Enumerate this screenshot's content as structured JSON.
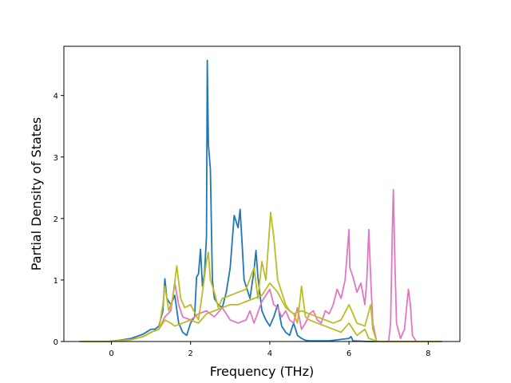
{
  "chart_data": {
    "type": "line",
    "title": "",
    "xlabel": "Frequency (THz)",
    "ylabel": "Partial Density of States",
    "xlim": [
      -1.2,
      8.8
    ],
    "ylim": [
      0,
      4.8
    ],
    "xticks": [
      0,
      2,
      4,
      6,
      8
    ],
    "yticks": [
      0,
      1,
      2,
      3,
      4
    ],
    "legend": "none",
    "grid": false,
    "series": [
      {
        "color": "#1f77b4",
        "x": [
          -0.8,
          -0.1,
          0.2,
          0.5,
          0.8,
          1.0,
          1.1,
          1.2,
          1.3,
          1.35,
          1.4,
          1.5,
          1.6,
          1.7,
          1.8,
          1.9,
          2.0,
          2.1,
          2.15,
          2.2,
          2.25,
          2.3,
          2.35,
          2.4,
          2.42,
          2.45,
          2.5,
          2.55,
          2.6,
          2.7,
          2.8,
          2.9,
          3.0,
          3.1,
          3.2,
          3.25,
          3.3,
          3.35,
          3.4,
          3.5,
          3.6,
          3.65,
          3.7,
          3.8,
          3.9,
          4.0,
          4.1,
          4.2,
          4.3,
          4.4,
          4.5,
          4.6,
          4.7,
          4.8,
          4.9,
          5.0,
          5.5,
          6.0,
          6.05,
          6.1,
          6.5,
          7.0,
          7.5,
          8.0,
          8.35
        ],
        "y": [
          0,
          0,
          0.02,
          0.05,
          0.12,
          0.2,
          0.2,
          0.25,
          0.5,
          1.02,
          0.7,
          0.6,
          0.75,
          0.3,
          0.15,
          0.1,
          0.3,
          0.4,
          1.05,
          1.1,
          1.5,
          0.9,
          1.1,
          1.7,
          4.57,
          3.2,
          2.8,
          1.0,
          0.7,
          0.6,
          0.55,
          0.8,
          1.2,
          2.05,
          1.85,
          2.15,
          1.6,
          1.0,
          0.9,
          0.7,
          1.15,
          1.48,
          1.05,
          0.5,
          0.35,
          0.25,
          0.4,
          0.6,
          0.25,
          0.15,
          0.1,
          0.3,
          0.1,
          0.05,
          0.02,
          0.01,
          0.01,
          0.05,
          0.08,
          0.01,
          0,
          0,
          0,
          0,
          0
        ]
      },
      {
        "color": "#e377c2",
        "x": [
          -0.8,
          -0.1,
          0.2,
          0.5,
          0.8,
          1.0,
          1.2,
          1.35,
          1.5,
          1.6,
          1.7,
          1.8,
          2.0,
          2.2,
          2.4,
          2.6,
          2.8,
          3.0,
          3.2,
          3.4,
          3.5,
          3.6,
          3.8,
          4.0,
          4.1,
          4.2,
          4.3,
          4.4,
          4.5,
          4.6,
          4.7,
          4.8,
          4.9,
          5.0,
          5.1,
          5.2,
          5.3,
          5.4,
          5.5,
          5.6,
          5.7,
          5.8,
          5.9,
          6.0,
          6.02,
          6.1,
          6.2,
          6.3,
          6.4,
          6.45,
          6.5,
          6.55,
          6.6,
          6.7,
          6.8,
          6.9,
          7.0,
          7.05,
          7.1,
          7.12,
          7.15,
          7.2,
          7.3,
          7.4,
          7.5,
          7.55,
          7.6,
          7.7,
          8.0,
          8.35
        ],
        "y": [
          0,
          0,
          0.01,
          0.03,
          0.08,
          0.15,
          0.2,
          0.4,
          0.5,
          0.95,
          0.6,
          0.4,
          0.35,
          0.45,
          0.5,
          0.4,
          0.55,
          0.35,
          0.3,
          0.35,
          0.5,
          0.3,
          0.65,
          0.85,
          0.6,
          0.55,
          0.4,
          0.5,
          0.35,
          0.3,
          0.55,
          0.2,
          0.3,
          0.45,
          0.5,
          0.35,
          0.3,
          0.5,
          0.45,
          0.6,
          0.85,
          0.7,
          1.0,
          1.82,
          1.2,
          1.05,
          0.8,
          0.95,
          0.6,
          1.0,
          1.82,
          1.0,
          0.3,
          0,
          0,
          0,
          0,
          0.3,
          2.0,
          2.47,
          1.5,
          0.3,
          0.05,
          0.2,
          0.85,
          0.6,
          0.1,
          0,
          0,
          0
        ]
      },
      {
        "color": "#bcbd22",
        "x": [
          -0.8,
          -0.1,
          0.2,
          0.5,
          0.8,
          1.0,
          1.2,
          1.3,
          1.35,
          1.45,
          1.55,
          1.65,
          1.75,
          1.85,
          2.0,
          2.2,
          2.3,
          2.4,
          2.45,
          2.5,
          2.6,
          2.7,
          2.8,
          3.0,
          3.2,
          3.4,
          3.6,
          3.7,
          3.8,
          3.9,
          4.0,
          4.02,
          4.1,
          4.2,
          4.3,
          4.4,
          4.5,
          4.6,
          4.7,
          4.8,
          4.9,
          5.0,
          5.2,
          5.4,
          5.6,
          5.8,
          6.0,
          6.2,
          6.4,
          6.5,
          6.6,
          6.7,
          7.0,
          7.2,
          7.5,
          8.0,
          8.35
        ],
        "y": [
          0,
          0,
          0.01,
          0.03,
          0.08,
          0.15,
          0.2,
          0.6,
          0.9,
          0.5,
          0.7,
          1.23,
          0.7,
          0.55,
          0.6,
          0.35,
          0.8,
          1.3,
          1.45,
          1.0,
          0.8,
          0.55,
          0.7,
          0.75,
          0.8,
          0.85,
          1.2,
          0.7,
          1.3,
          1.0,
          1.9,
          2.1,
          1.7,
          1.0,
          0.8,
          0.6,
          0.5,
          0.45,
          0.3,
          0.9,
          0.4,
          0.35,
          0.3,
          0.25,
          0.2,
          0.15,
          0.3,
          0.1,
          0.2,
          0.05,
          0.03,
          0,
          0,
          0,
          0,
          0,
          0
        ]
      },
      {
        "color": "#bcbd22",
        "x": [
          -0.8,
          -0.1,
          0.2,
          0.5,
          0.8,
          1.0,
          1.2,
          1.35,
          1.5,
          1.6,
          1.8,
          2.0,
          2.2,
          2.4,
          2.6,
          2.8,
          3.0,
          3.2,
          3.4,
          3.6,
          3.8,
          4.0,
          4.2,
          4.4,
          4.6,
          4.8,
          5.0,
          5.2,
          5.4,
          5.6,
          5.8,
          6.0,
          6.2,
          6.4,
          6.55,
          6.6,
          6.7,
          7.0,
          7.5,
          8.0,
          8.35
        ],
        "y": [
          0,
          0,
          0.01,
          0.03,
          0.08,
          0.15,
          0.2,
          0.35,
          0.3,
          0.25,
          0.3,
          0.35,
          0.3,
          0.45,
          0.5,
          0.55,
          0.6,
          0.6,
          0.65,
          0.7,
          0.75,
          0.95,
          0.8,
          0.55,
          0.45,
          0.5,
          0.45,
          0.4,
          0.35,
          0.3,
          0.35,
          0.6,
          0.3,
          0.25,
          0.6,
          0.2,
          0,
          0,
          0,
          0,
          0
        ]
      }
    ]
  }
}
